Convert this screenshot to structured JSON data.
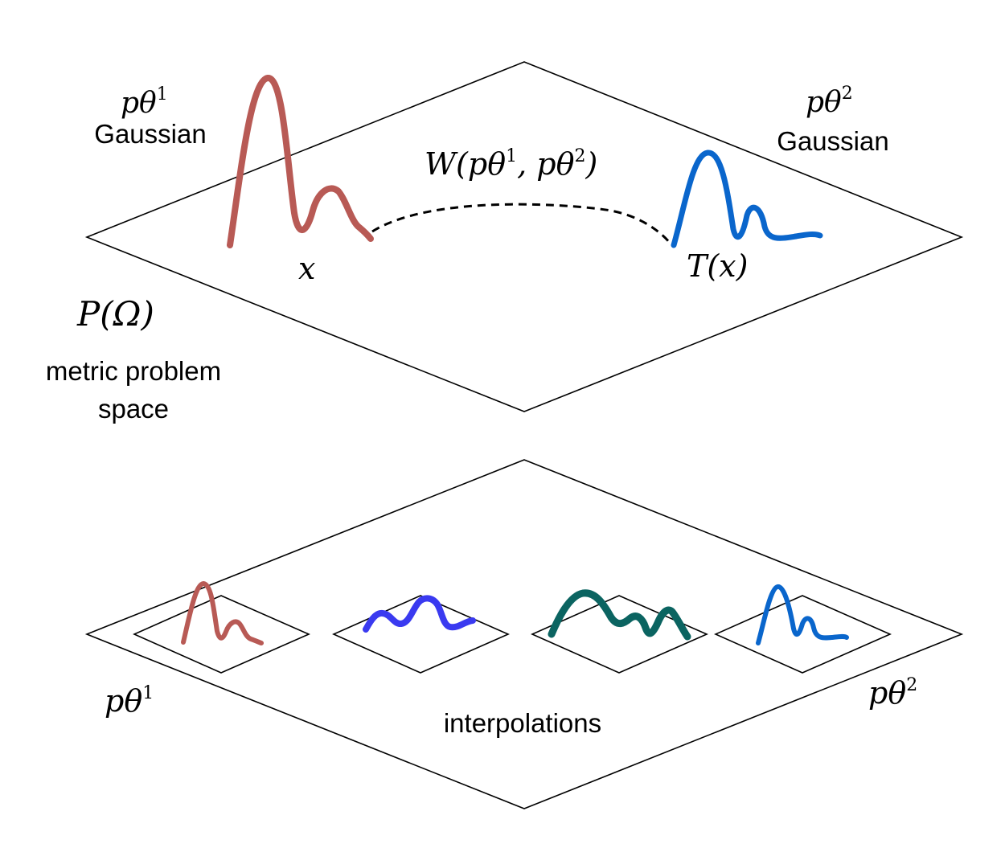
{
  "top_plane": {
    "left_label": {
      "math": "pθ",
      "sup": "1",
      "name": "Gaussian"
    },
    "right_label": {
      "math": "pθ",
      "sup": "2",
      "name": "Gaussian"
    },
    "distance": {
      "prefix": "W(pθ",
      "sup1": "1",
      "mid": ", pθ",
      "sup2": "2",
      "suffix": ")"
    },
    "point_x": "x",
    "point_tx": "T(x)",
    "space_symbol": "P(Ω)",
    "space_caption_line1": "metric problem",
    "space_caption_line2": "space"
  },
  "bottom_plane": {
    "left_label": {
      "math": "pθ",
      "sup": "1"
    },
    "right_label": {
      "math": "pθ",
      "sup": "2"
    },
    "caption": "interpolations"
  },
  "colors": {
    "source": "#b85a55",
    "target": "#0a66cc",
    "interp_1": "#3a3af0",
    "interp_2": "#0b6461",
    "outline": "#000000"
  }
}
